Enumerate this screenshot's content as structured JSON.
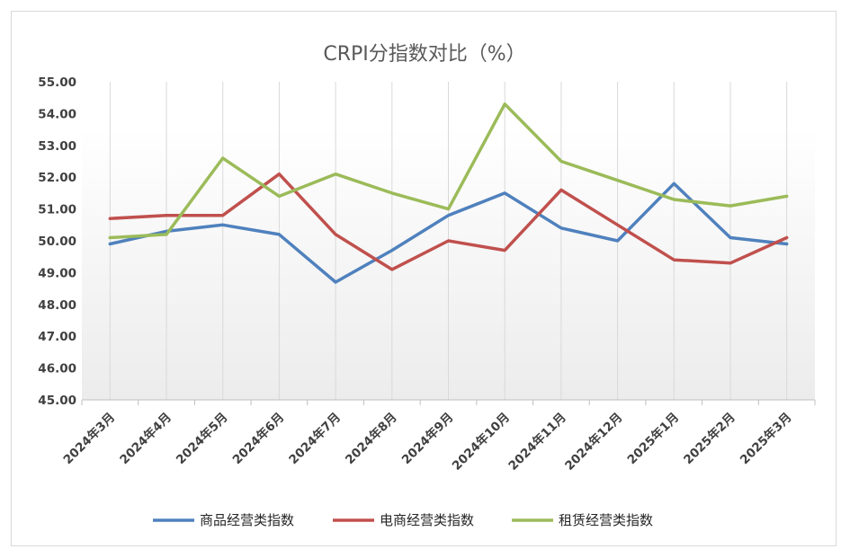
{
  "chart_data": {
    "type": "line",
    "title": "CRPI分指数对比（%）",
    "categories": [
      "2024年3月",
      "2024年4月",
      "2024年5月",
      "2024年6月",
      "2024年7月",
      "2024年8月",
      "2024年9月",
      "2024年10月",
      "2024年11月",
      "2024年12月",
      "2025年1月",
      "2025年2月",
      "2025年3月"
    ],
    "ylim": [
      45,
      55
    ],
    "yticks": [
      "45.00",
      "46.00",
      "47.00",
      "48.00",
      "49.00",
      "50.00",
      "51.00",
      "52.00",
      "53.00",
      "54.00",
      "55.00"
    ],
    "grid": "vertical",
    "legend_position": "bottom",
    "series": [
      {
        "name": "商品经营类指数",
        "color": "#4f81bd",
        "values": [
          49.9,
          50.3,
          50.5,
          50.2,
          48.7,
          49.7,
          50.8,
          51.5,
          50.4,
          50.0,
          51.8,
          50.1,
          49.9
        ]
      },
      {
        "name": "电商经营类指数",
        "color": "#c0504d",
        "values": [
          50.7,
          50.8,
          50.8,
          52.1,
          50.2,
          49.1,
          50.0,
          49.7,
          51.6,
          50.5,
          49.4,
          49.3,
          50.1
        ]
      },
      {
        "name": "租赁经营类指数",
        "color": "#9bbb59",
        "values": [
          50.1,
          50.2,
          52.6,
          51.4,
          52.1,
          51.5,
          51.0,
          54.3,
          52.5,
          51.9,
          51.3,
          51.1,
          51.4
        ]
      }
    ]
  }
}
